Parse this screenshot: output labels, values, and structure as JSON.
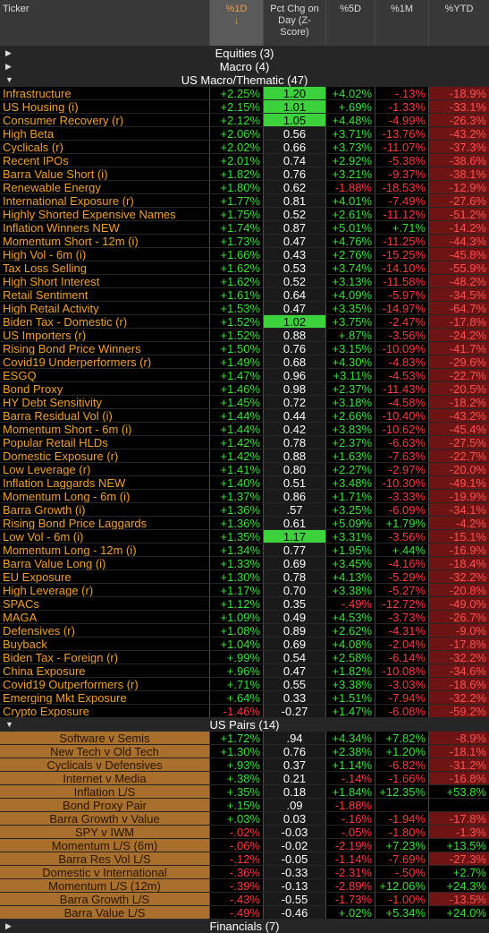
{
  "header": {
    "columns": [
      "Ticker",
      "%1D",
      "Pct Chg on Day (Z-Score)",
      "%5D",
      "%1M",
      "%YTD"
    ],
    "sort_indicator": "↓"
  },
  "sections": [
    {
      "label": "Equities (3)"
    },
    {
      "label": "Macro (4)"
    },
    {
      "label": "US Macro/Thematic (47)",
      "rows": [
        [
          "Infrastructure",
          "+2.25%",
          "1.20",
          "+4.02%",
          "-.13%",
          "-18.9%"
        ],
        [
          "US Housing (i)",
          "+2.15%",
          "1.01",
          "+.69%",
          "-1.33%",
          "-33.1%"
        ],
        [
          "Consumer Recovery (r)",
          "+2.12%",
          "1.05",
          "+4.48%",
          "-4.99%",
          "-26.3%"
        ],
        [
          "High Beta",
          "+2.06%",
          "0.56",
          "+3.71%",
          "-13.76%",
          "-43.2%"
        ],
        [
          "Cyclicals (r)",
          "+2.02%",
          "0.66",
          "+3.73%",
          "-11.07%",
          "-37.3%"
        ],
        [
          "Recent IPOs",
          "+2.01%",
          "0.74",
          "+2.92%",
          "-5.38%",
          "-38.6%"
        ],
        [
          "Barra Value Short (i)",
          "+1.82%",
          "0.76",
          "+3.21%",
          "-9.37%",
          "-38.1%"
        ],
        [
          "Renewable Energy",
          "+1.80%",
          "0.62",
          "-1.88%",
          "-18.53%",
          "-12.9%"
        ],
        [
          "International Exposure (r)",
          "+1.77%",
          "0.81",
          "+4.01%",
          "-7.49%",
          "-27.6%"
        ],
        [
          "Highly Shorted Expensive Names",
          "+1.75%",
          "0.52",
          "+2.61%",
          "-11.12%",
          "-51.2%"
        ],
        [
          "Inflation Winners NEW",
          "+1.74%",
          "0.87",
          "+5.01%",
          "+.71%",
          "-14.2%"
        ],
        [
          "Momentum Short - 12m (i)",
          "+1.73%",
          "0.47",
          "+4.76%",
          "-11.25%",
          "-44.3%"
        ],
        [
          "High Vol - 6m (i)",
          "+1.66%",
          "0.43",
          "+2.76%",
          "-15.25%",
          "-45.8%"
        ],
        [
          "Tax Loss Selling",
          "+1.62%",
          "0.53",
          "+3.74%",
          "-14.10%",
          "-55.9%"
        ],
        [
          "High Short Interest",
          "+1.62%",
          "0.52",
          "+3.13%",
          "-11.58%",
          "-48.2%"
        ],
        [
          "Retail Sentiment",
          "+1.61%",
          "0.64",
          "+4.09%",
          "-5.97%",
          "-34.5%"
        ],
        [
          "High Retail Activity",
          "+1.53%",
          "0.47",
          "+3.35%",
          "-14.97%",
          "-64.7%"
        ],
        [
          "Biden Tax - Domestic (r)",
          "+1.52%",
          "1.02",
          "+3.75%",
          "-2.47%",
          "-17.8%"
        ],
        [
          "US Importers (r)",
          "+1.52%",
          "0.88",
          "+.87%",
          "-3.56%",
          "-24.2%"
        ],
        [
          "Rising Bond Price Winners",
          "+1.50%",
          "0.76",
          "+3.15%",
          "-10.09%",
          "-41.7%"
        ],
        [
          "Covid19 Underperformers (r)",
          "+1.49%",
          "0.68",
          "+4.30%",
          "-4.83%",
          "-29.6%"
        ],
        [
          "ESGQ",
          "+1.47%",
          "0.96",
          "+3.11%",
          "-4.53%",
          "-22.7%"
        ],
        [
          "Bond Proxy",
          "+1.46%",
          "0.98",
          "+2.37%",
          "-11.43%",
          "-20.5%"
        ],
        [
          "HY Debt Sensitivity",
          "+1.45%",
          "0.72",
          "+3.18%",
          "-4.58%",
          "-18.2%"
        ],
        [
          "Barra Residual Vol (i)",
          "+1.44%",
          "0.44",
          "+2.66%",
          "-10.40%",
          "-43.2%"
        ],
        [
          "Momentum Short - 6m (i)",
          "+1.44%",
          "0.42",
          "+3.83%",
          "-10.62%",
          "-45.4%"
        ],
        [
          "Popular Retail HLDs",
          "+1.42%",
          "0.78",
          "+2.37%",
          "-6.63%",
          "-27.5%"
        ],
        [
          "Domestic Exposure (r)",
          "+1.42%",
          "0.88",
          "+1.63%",
          "-7.63%",
          "-22.7%"
        ],
        [
          "Low Leverage (r)",
          "+1.41%",
          "0.80",
          "+2.27%",
          "-2.97%",
          "-20.0%"
        ],
        [
          "Inflation Laggards NEW",
          "+1.40%",
          "0.51",
          "+3.48%",
          "-10.30%",
          "-49.1%"
        ],
        [
          "Momentum Long - 6m (i)",
          "+1.37%",
          "0.86",
          "+1.71%",
          "-3.33%",
          "-19.9%"
        ],
        [
          "Barra Growth (i)",
          "+1.36%",
          ".57",
          "+3.25%",
          "-6.09%",
          "-34.1%"
        ],
        [
          "Rising Bond Price Laggards",
          "+1.36%",
          "0.61",
          "+5.09%",
          "+1.79%",
          "-4.2%"
        ],
        [
          "Low Vol - 6m (i)",
          "+1.35%",
          "1.17",
          "+3.31%",
          "-3.56%",
          "-15.1%"
        ],
        [
          "Momentum Long - 12m (i)",
          "+1.34%",
          "0.77",
          "+1.95%",
          "+.44%",
          "-16.9%"
        ],
        [
          "Barra Value Long (i)",
          "+1.33%",
          "0.69",
          "+3.45%",
          "-4.16%",
          "-18.4%"
        ],
        [
          "EU Exposure",
          "+1.30%",
          "0.78",
          "+4.13%",
          "-5.29%",
          "-32.2%"
        ],
        [
          "High Leverage (r)",
          "+1.17%",
          "0.70",
          "+3.38%",
          "-5.27%",
          "-20.8%"
        ],
        [
          "SPACs",
          "+1.12%",
          "0.35",
          "-.49%",
          "-12.72%",
          "-49.0%"
        ],
        [
          "MAGA",
          "+1.09%",
          "0.49",
          "+4.53%",
          "-3.73%",
          "-26.7%"
        ],
        [
          "Defensives (r)",
          "+1.08%",
          "0.89",
          "+2.62%",
          "-4.31%",
          "-9.0%"
        ],
        [
          "Buyback",
          "+1.04%",
          "0.69",
          "+4.08%",
          "-2.04%",
          "-17.8%"
        ],
        [
          "Biden Tax - Foreign (r)",
          "+.99%",
          "0.54",
          "+2.58%",
          "-6.14%",
          "-32.2%"
        ],
        [
          "China Exposure",
          "+.96%",
          "0.47",
          "+1.82%",
          "-10.08%",
          "-34.6%"
        ],
        [
          "Covid19 Outperformers (r)",
          "+.71%",
          "0.55",
          "+3.38%",
          "-3.03%",
          "-18.6%"
        ],
        [
          "Emerging Mkt Exposure",
          "+.64%",
          "0.33",
          "+1.51%",
          "-7.94%",
          "-32.2%"
        ],
        [
          "Crypto Exposure",
          "-1.46%",
          "-0.27",
          "+1.47%",
          "-6.08%",
          "-59.2%"
        ]
      ]
    },
    {
      "label": "US Pairs (14)",
      "rows": [
        [
          "Software v Semis",
          "+1.72%",
          ".94",
          "+4.34%",
          "+7.82%",
          "-8.9%"
        ],
        [
          "New Tech v Old Tech",
          "+1.30%",
          "0.76",
          "+2.38%",
          "+1.20%",
          "-18.1%"
        ],
        [
          "Cyclicals v Defensives",
          "+.93%",
          "0.37",
          "+1.14%",
          "-6.82%",
          "-31.2%"
        ],
        [
          "Internet v Media",
          "+.38%",
          "0.21",
          "-.14%",
          "-1.66%",
          "-16.8%"
        ],
        [
          "Inflation L/S",
          "+.35%",
          "0.18",
          "+1.84%",
          "+12.35%",
          "+53.8%"
        ],
        [
          "Bond Proxy Pair",
          "+.15%",
          ".09",
          "-1.88%",
          null,
          null
        ],
        [
          "Barra Growth v Value",
          "+.03%",
          "0.03",
          "-.16%",
          "-1.94%",
          "-17.8%"
        ],
        [
          "SPY v IWM",
          "-.02%",
          "-0.03",
          "-.05%",
          "-1.80%",
          "-1.3%"
        ],
        [
          "Momentum L/S (6m)",
          "-.06%",
          "-0.02",
          "-2.19%",
          "+7.23%",
          "+13.5%"
        ],
        [
          "Barra Res Vol L/S",
          "-.12%",
          "-0.05",
          "-1.14%",
          "-7.69%",
          "-27.3%"
        ],
        [
          "Domestic v International",
          "-.36%",
          "-0.33",
          "-2.31%",
          "-.50%",
          "+2.7%"
        ],
        [
          "Momentum L/S (12m)",
          "-.39%",
          "-0.13",
          "-2.89%",
          "+12.06%",
          "+24.3%"
        ],
        [
          "Barra Growth L/S",
          "-.43%",
          "-0.55",
          "-1.73%",
          "-1.00%",
          "-13.5%"
        ],
        [
          "Barra Value L/S",
          "-.49%",
          "-0.46",
          "+.02%",
          "+5.34%",
          "+24.0%"
        ]
      ]
    },
    {
      "label": "Financials (7)"
    }
  ]
}
